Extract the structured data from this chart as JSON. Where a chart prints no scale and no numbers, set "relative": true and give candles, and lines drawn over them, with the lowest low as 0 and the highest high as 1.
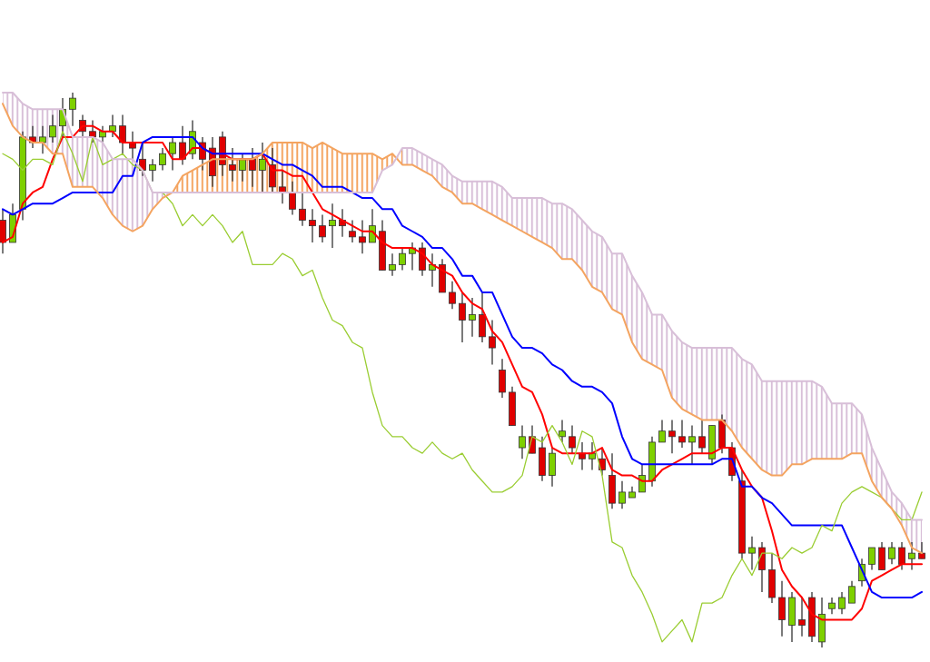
{
  "chart_data": {
    "type": "candlestick",
    "relative": true,
    "categories": [
      null,
      null,
      null,
      null,
      null,
      null,
      null,
      null,
      null,
      null,
      null,
      null,
      null,
      null,
      null,
      null,
      null,
      null,
      null,
      null,
      null,
      null,
      null,
      null,
      null,
      null,
      null,
      null,
      null,
      null,
      null,
      null,
      null,
      null,
      null,
      null,
      null,
      null,
      null,
      null,
      null,
      null,
      null,
      null,
      null,
      null,
      null,
      null,
      null,
      null,
      null,
      null,
      null,
      null,
      null,
      null,
      null,
      null,
      null,
      null,
      null,
      null,
      null,
      null,
      null,
      null,
      null,
      null,
      null,
      null,
      null,
      null,
      null,
      null,
      null,
      null,
      null,
      null,
      null,
      null,
      null,
      null,
      null,
      null,
      null,
      null,
      null,
      null,
      null,
      null,
      null,
      null,
      null
    ],
    "colors": [
      "#e00000",
      "#7ed000",
      "#7ed000",
      "#e00000",
      "#7ed000",
      "#7ed000",
      "#7ed000",
      "#7ed000",
      "#e00000",
      "#e00000",
      "#7ed000",
      "#7ed000",
      "#e00000",
      "#e00000",
      "#e00000",
      "#7ed000",
      "#7ed000",
      "#7ed000",
      "#e00000",
      "#7ed000",
      "#e00000",
      "#e00000",
      "#e00000",
      "#e00000",
      "#7ed000",
      "#e00000",
      "#7ed000",
      "#e00000",
      "#e00000",
      "#e00000",
      "#e00000",
      "#e00000",
      "#e00000",
      "#7ed000",
      "#e00000",
      "#e00000",
      "#e00000",
      "#7ed000",
      "#e00000",
      "#7ed000",
      "#7ed000",
      "#7ed000",
      "#e00000",
      "#7ed000",
      "#e00000",
      "#e00000",
      "#e00000",
      "#7ed000",
      "#e00000",
      "#e00000",
      "#e00000",
      "#e00000",
      "#7ed000",
      "#e00000",
      "#e00000",
      "#7ed000",
      "#7ed000",
      "#e00000",
      "#e00000",
      "#7ed000",
      "#e00000",
      "#e00000",
      "#7ed000",
      "#7ed000",
      "#7ed000",
      "#7ed000",
      "#7ed000",
      "#e00000",
      "#e00000",
      "#7ed000",
      "#e00000",
      "#7ed000",
      "#e00000",
      "#e00000",
      "#e00000",
      "#7ed000",
      "#e00000",
      "#e00000",
      "#e00000",
      "#7ed000",
      "#e00000",
      "#e00000",
      "#7ed000",
      "#7ed000",
      "#7ed000",
      "#7ed000",
      "#7ed000",
      "#7ed000",
      "#e00000",
      "#7ed000",
      "#e00000",
      "#7ed000",
      "#e00000"
    ],
    "ohlc": [
      [
        0.77,
        0.79,
        0.71,
        0.73
      ],
      [
        0.73,
        0.8,
        0.73,
        0.78
      ],
      [
        0.79,
        0.93,
        0.77,
        0.92
      ],
      [
        0.92,
        0.94,
        0.9,
        0.91
      ],
      [
        0.91,
        0.94,
        0.89,
        0.92
      ],
      [
        0.92,
        0.96,
        0.91,
        0.94
      ],
      [
        0.94,
        0.99,
        0.92,
        0.97
      ],
      [
        0.97,
        1.0,
        0.94,
        0.99
      ],
      [
        0.95,
        0.96,
        0.92,
        0.93
      ],
      [
        0.93,
        0.95,
        0.91,
        0.92
      ],
      [
        0.92,
        0.94,
        0.91,
        0.93
      ],
      [
        0.93,
        0.96,
        0.92,
        0.94
      ],
      [
        0.94,
        0.96,
        0.89,
        0.91
      ],
      [
        0.91,
        0.93,
        0.88,
        0.9
      ],
      [
        0.88,
        0.91,
        0.85,
        0.86
      ],
      [
        0.86,
        0.88,
        0.84,
        0.87
      ],
      [
        0.87,
        0.9,
        0.86,
        0.89
      ],
      [
        0.89,
        0.92,
        0.86,
        0.91
      ],
      [
        0.91,
        0.94,
        0.87,
        0.88
      ],
      [
        0.89,
        0.95,
        0.88,
        0.93
      ],
      [
        0.91,
        0.92,
        0.86,
        0.88
      ],
      [
        0.9,
        0.92,
        0.83,
        0.85
      ],
      [
        0.92,
        0.93,
        0.85,
        0.87
      ],
      [
        0.87,
        0.9,
        0.84,
        0.86
      ],
      [
        0.86,
        0.89,
        0.84,
        0.88
      ],
      [
        0.88,
        0.9,
        0.83,
        0.86
      ],
      [
        0.86,
        0.91,
        0.82,
        0.88
      ],
      [
        0.87,
        0.9,
        0.82,
        0.83
      ],
      [
        0.83,
        0.86,
        0.8,
        0.82
      ],
      [
        0.82,
        0.84,
        0.78,
        0.79
      ],
      [
        0.79,
        0.82,
        0.76,
        0.77
      ],
      [
        0.77,
        0.79,
        0.73,
        0.76
      ],
      [
        0.76,
        0.78,
        0.73,
        0.74
      ],
      [
        0.76,
        0.8,
        0.72,
        0.77
      ],
      [
        0.77,
        0.79,
        0.74,
        0.76
      ],
      [
        0.75,
        0.77,
        0.73,
        0.74
      ],
      [
        0.74,
        0.77,
        0.71,
        0.73
      ],
      [
        0.73,
        0.79,
        0.73,
        0.76
      ],
      [
        0.75,
        0.77,
        0.68,
        0.68
      ],
      [
        0.68,
        0.71,
        0.67,
        0.69
      ],
      [
        0.69,
        0.72,
        0.68,
        0.71
      ],
      [
        0.71,
        0.73,
        0.68,
        0.72
      ],
      [
        0.72,
        0.73,
        0.67,
        0.68
      ],
      [
        0.68,
        0.71,
        0.65,
        0.69
      ],
      [
        0.69,
        0.7,
        0.64,
        0.64
      ],
      [
        0.64,
        0.66,
        0.61,
        0.62
      ],
      [
        0.62,
        0.64,
        0.55,
        0.59
      ],
      [
        0.59,
        0.63,
        0.56,
        0.6
      ],
      [
        0.6,
        0.64,
        0.55,
        0.56
      ],
      [
        0.56,
        0.59,
        0.51,
        0.54
      ],
      [
        0.5,
        0.52,
        0.45,
        0.46
      ],
      [
        0.46,
        0.47,
        0.4,
        0.4
      ],
      [
        0.36,
        0.4,
        0.34,
        0.38
      ],
      [
        0.38,
        0.4,
        0.35,
        0.35
      ],
      [
        0.36,
        0.38,
        0.3,
        0.31
      ],
      [
        0.31,
        0.36,
        0.29,
        0.35
      ],
      [
        0.38,
        0.41,
        0.37,
        0.39
      ],
      [
        0.38,
        0.4,
        0.35,
        0.36
      ],
      [
        0.35,
        0.37,
        0.32,
        0.34
      ],
      [
        0.34,
        0.37,
        0.32,
        0.35
      ],
      [
        0.34,
        0.36,
        0.31,
        0.32
      ],
      [
        0.31,
        0.35,
        0.25,
        0.26
      ],
      [
        0.26,
        0.3,
        0.25,
        0.28
      ],
      [
        0.27,
        0.29,
        0.27,
        0.28
      ],
      [
        0.28,
        0.33,
        0.28,
        0.31
      ],
      [
        0.3,
        0.38,
        0.29,
        0.37
      ],
      [
        0.37,
        0.41,
        0.37,
        0.39
      ],
      [
        0.39,
        0.41,
        0.35,
        0.38
      ],
      [
        0.38,
        0.41,
        0.36,
        0.37
      ],
      [
        0.37,
        0.4,
        0.33,
        0.38
      ],
      [
        0.38,
        0.41,
        0.35,
        0.36
      ],
      [
        0.34,
        0.4,
        0.33,
        0.4
      ],
      [
        0.41,
        0.42,
        0.35,
        0.36
      ],
      [
        0.36,
        0.37,
        0.3,
        0.31
      ],
      [
        0.3,
        0.32,
        0.16,
        0.17
      ],
      [
        0.17,
        0.2,
        0.14,
        0.18
      ],
      [
        0.18,
        0.19,
        0.1,
        0.14
      ],
      [
        0.14,
        0.17,
        0.08,
        0.09
      ],
      [
        0.09,
        0.12,
        0.02,
        0.05
      ],
      [
        0.04,
        0.1,
        0.01,
        0.09
      ],
      [
        0.05,
        0.09,
        0.02,
        0.04
      ],
      [
        0.09,
        0.1,
        0.01,
        0.02
      ],
      [
        0.01,
        0.09,
        0.0,
        0.06
      ],
      [
        0.07,
        0.09,
        0.06,
        0.08
      ],
      [
        0.07,
        0.1,
        0.06,
        0.09
      ],
      [
        0.08,
        0.12,
        0.08,
        0.11
      ],
      [
        0.12,
        0.16,
        0.11,
        0.15
      ],
      [
        0.15,
        0.18,
        0.14,
        0.18
      ],
      [
        0.18,
        0.19,
        0.14,
        0.14
      ],
      [
        0.16,
        0.19,
        0.15,
        0.18
      ],
      [
        0.18,
        0.19,
        0.14,
        0.15
      ],
      [
        0.16,
        0.19,
        0.14,
        0.17
      ],
      [
        0.17,
        0.19,
        0.16,
        0.16
      ]
    ],
    "series": [
      {
        "type": "line",
        "color": "#ff0000",
        "values": [
          0.73,
          0.74,
          0.8,
          0.82,
          0.83,
          0.88,
          0.92,
          0.92,
          0.94,
          0.94,
          0.93,
          0.93,
          0.91,
          0.91,
          0.91,
          0.91,
          0.91,
          0.88,
          0.88,
          0.9,
          0.9,
          0.89,
          0.89,
          0.88,
          0.88,
          0.88,
          0.89,
          0.86,
          0.86,
          0.85,
          0.85,
          0.82,
          0.79,
          0.78,
          0.77,
          0.76,
          0.75,
          0.75,
          0.73,
          0.72,
          0.72,
          0.72,
          0.71,
          0.69,
          0.68,
          0.67,
          0.64,
          0.62,
          0.61,
          0.57,
          0.55,
          0.51,
          0.47,
          0.46,
          0.42,
          0.36,
          0.35,
          0.35,
          0.35,
          0.35,
          0.36,
          0.32,
          0.31,
          0.31,
          0.3,
          0.3,
          0.32,
          0.33,
          0.34,
          0.35,
          0.35,
          0.35,
          0.36,
          0.36,
          0.32,
          0.29,
          0.27,
          0.21,
          0.14,
          0.11,
          0.09,
          0.06,
          0.05,
          0.05,
          0.05,
          0.05,
          0.07,
          0.12,
          0.13,
          0.14,
          0.15,
          0.15,
          0.15
        ]
      },
      {
        "type": "line",
        "color": "#0000ff",
        "values": [
          0.79,
          0.78,
          0.79,
          0.8,
          0.8,
          0.8,
          0.81,
          0.82,
          0.82,
          0.82,
          0.82,
          0.82,
          0.85,
          0.85,
          0.91,
          0.92,
          0.92,
          0.92,
          0.92,
          0.92,
          0.9,
          0.89,
          0.89,
          0.89,
          0.89,
          0.89,
          0.89,
          0.88,
          0.87,
          0.87,
          0.86,
          0.85,
          0.83,
          0.83,
          0.83,
          0.82,
          0.81,
          0.81,
          0.79,
          0.79,
          0.76,
          0.75,
          0.74,
          0.72,
          0.72,
          0.7,
          0.67,
          0.67,
          0.64,
          0.64,
          0.6,
          0.56,
          0.54,
          0.54,
          0.53,
          0.51,
          0.5,
          0.48,
          0.47,
          0.47,
          0.46,
          0.44,
          0.38,
          0.34,
          0.33,
          0.33,
          0.33,
          0.33,
          0.33,
          0.33,
          0.33,
          0.33,
          0.34,
          0.34,
          0.29,
          0.29,
          0.27,
          0.26,
          0.24,
          0.22,
          0.22,
          0.22,
          0.22,
          0.22,
          0.22,
          0.18,
          0.14,
          0.1,
          0.09,
          0.09,
          0.09,
          0.09,
          0.1
        ]
      },
      {
        "type": "line",
        "color": "#9acd32",
        "values": [
          0.89,
          0.88,
          0.86,
          0.88,
          0.88,
          0.87,
          0.93,
          0.89,
          0.84,
          0.92,
          0.87,
          0.88,
          0.89,
          0.87,
          0.86,
          0.82,
          0.82,
          0.8,
          0.76,
          0.78,
          0.76,
          0.78,
          0.76,
          0.73,
          0.75,
          0.69,
          0.69,
          0.69,
          0.71,
          0.7,
          0.67,
          0.68,
          0.63,
          0.59,
          0.58,
          0.55,
          0.54,
          0.46,
          0.4,
          0.38,
          0.38,
          0.36,
          0.35,
          0.37,
          0.35,
          0.34,
          0.35,
          0.32,
          0.3,
          0.28,
          0.28,
          0.29,
          0.31,
          0.38,
          0.37,
          0.4,
          0.37,
          0.33,
          0.39,
          0.38,
          0.31,
          0.19,
          0.18,
          0.13,
          0.1,
          0.06,
          0.01,
          0.03,
          0.05,
          0.01,
          0.08,
          0.08,
          0.09,
          0.13,
          0.16,
          0.13,
          0.17,
          0.17,
          0.16,
          0.18,
          0.17,
          0.18,
          0.22,
          0.21,
          0.26,
          0.28,
          0.29,
          0.28,
          0.27,
          0.25,
          0.23,
          0.23,
          0.28
        ]
      },
      {
        "type": "line",
        "color": "#f4a460",
        "values": [
          0.98,
          0.94,
          0.92,
          0.91,
          0.91,
          0.89,
          0.89,
          0.83,
          0.83,
          0.83,
          0.81,
          0.78,
          0.76,
          0.75,
          0.76,
          0.79,
          0.81,
          0.82,
          0.85,
          0.86,
          0.87,
          0.88,
          0.88,
          0.88,
          0.88,
          0.88,
          0.89,
          0.91,
          0.91,
          0.91,
          0.91,
          0.9,
          0.91,
          0.9,
          0.89,
          0.89,
          0.89,
          0.89,
          0.88,
          0.89,
          0.87,
          0.87,
          0.86,
          0.85,
          0.83,
          0.82,
          0.8,
          0.8,
          0.79,
          0.78,
          0.77,
          0.76,
          0.75,
          0.74,
          0.73,
          0.72,
          0.7,
          0.7,
          0.68,
          0.65,
          0.64,
          0.61,
          0.6,
          0.55,
          0.52,
          0.51,
          0.5,
          0.45,
          0.43,
          0.42,
          0.41,
          0.41,
          0.41,
          0.39,
          0.36,
          0.34,
          0.32,
          0.31,
          0.31,
          0.33,
          0.33,
          0.34,
          0.34,
          0.34,
          0.34,
          0.35,
          0.35,
          0.3,
          0.27,
          0.25,
          0.22,
          0.18,
          0.17
        ],
        "upper": [
          null,
          null,
          null,
          null,
          null,
          null,
          null,
          null,
          null,
          null,
          null,
          null,
          null,
          null,
          null,
          null,
          null,
          0.82,
          0.85,
          0.86,
          0.87,
          0.88,
          0.88,
          0.88,
          0.88,
          0.88,
          0.89,
          0.91,
          0.91,
          0.91,
          0.91,
          0.9,
          0.91,
          0.9,
          0.89,
          0.89,
          0.89,
          0.89,
          0.88,
          0.89,
          0.87,
          null,
          null,
          null,
          null,
          null,
          null,
          null,
          null,
          null,
          null,
          null,
          null,
          null,
          null,
          null,
          null,
          null,
          null,
          null,
          null,
          null,
          null,
          null,
          null,
          null,
          null,
          null,
          null,
          null,
          null,
          null,
          null,
          null,
          null,
          null,
          null,
          null,
          null,
          null,
          null,
          null,
          null,
          null,
          null,
          null,
          null,
          null,
          null,
          null,
          null,
          null,
          null
        ],
        "lower": [
          null,
          null,
          null,
          null,
          null,
          null,
          null,
          null,
          null,
          null,
          null,
          null,
          null,
          null,
          null,
          null,
          null,
          0.82,
          0.82,
          0.82,
          0.82,
          0.82,
          0.82,
          0.82,
          0.82,
          0.82,
          0.82,
          0.82,
          0.82,
          0.82,
          0.82,
          0.82,
          0.82,
          0.82,
          0.82,
          0.82,
          0.82,
          0.82,
          0.86,
          0.87,
          0.9,
          null,
          null,
          null,
          null,
          null,
          null,
          null,
          null,
          null,
          null,
          null,
          null,
          null,
          null,
          null,
          null,
          null,
          null,
          null,
          null,
          null,
          null,
          null,
          null,
          null,
          null,
          null,
          null,
          null,
          null,
          null,
          null,
          null,
          null,
          null,
          null,
          null,
          null,
          null,
          null,
          null,
          null,
          null,
          null,
          null,
          null,
          null,
          null,
          null,
          null,
          null,
          null
        ]
      },
      {
        "type": "line",
        "color": "#d8bfd8",
        "values": [
          1.0,
          1.0,
          0.98,
          0.97,
          0.97,
          0.97,
          0.97,
          0.92,
          0.92,
          0.92,
          0.91,
          0.88,
          0.88,
          0.88,
          0.86,
          0.82,
          0.82,
          0.82,
          0.82,
          0.82,
          0.82,
          0.82,
          0.82,
          0.82,
          0.82,
          0.82,
          0.82,
          0.82,
          0.82,
          0.82,
          0.82,
          0.82,
          0.82,
          0.82,
          0.82,
          0.82,
          0.82,
          0.82,
          0.86,
          0.87,
          0.9,
          0.9,
          0.89,
          0.88,
          0.87,
          0.85,
          0.84,
          0.84,
          0.84,
          0.84,
          0.83,
          0.81,
          0.81,
          0.81,
          0.81,
          0.8,
          0.8,
          0.79,
          0.77,
          0.75,
          0.74,
          0.71,
          0.71,
          0.67,
          0.64,
          0.6,
          0.6,
          0.57,
          0.55,
          0.54,
          0.54,
          0.54,
          0.54,
          0.54,
          0.52,
          0.51,
          0.48,
          0.48,
          0.48,
          0.48,
          0.48,
          0.48,
          0.47,
          0.44,
          0.44,
          0.44,
          0.42,
          0.36,
          0.32,
          0.28,
          0.26,
          0.23,
          0.23
        ],
        "upper": [
          1.0,
          1.0,
          0.98,
          0.97,
          0.97,
          0.97,
          0.97,
          0.92,
          0.92,
          0.92,
          0.91,
          0.88,
          0.88,
          0.88,
          0.86,
          0.82,
          0.82,
          0.82,
          null,
          null,
          null,
          null,
          null,
          null,
          null,
          null,
          null,
          null,
          null,
          null,
          null,
          null,
          null,
          null,
          null,
          null,
          null,
          null,
          null,
          null,
          0.9,
          0.9,
          0.89,
          0.88,
          0.87,
          0.85,
          0.84,
          0.84,
          0.84,
          0.84,
          0.83,
          0.81,
          0.81,
          0.81,
          0.81,
          0.8,
          0.8,
          0.79,
          0.77,
          0.75,
          0.74,
          0.71,
          0.71,
          0.67,
          0.64,
          0.6,
          0.6,
          0.57,
          0.55,
          0.54,
          0.54,
          0.54,
          0.54,
          0.54,
          0.52,
          0.51,
          0.48,
          0.48,
          0.48,
          0.48,
          0.48,
          0.48,
          0.47,
          0.44,
          0.44,
          0.44,
          0.42,
          0.36,
          0.32,
          0.28,
          0.26,
          0.23,
          0.23
        ],
        "lower": [
          0.98,
          0.94,
          0.92,
          0.91,
          0.91,
          0.89,
          0.89,
          0.83,
          0.83,
          0.83,
          0.81,
          0.78,
          0.76,
          0.75,
          0.76,
          0.79,
          0.81,
          0.82,
          null,
          null,
          null,
          null,
          null,
          null,
          null,
          null,
          null,
          null,
          null,
          null,
          null,
          null,
          null,
          null,
          null,
          null,
          null,
          null,
          null,
          null,
          0.87,
          0.87,
          0.86,
          0.85,
          0.83,
          0.82,
          0.8,
          0.8,
          0.79,
          0.78,
          0.77,
          0.76,
          0.75,
          0.74,
          0.73,
          0.72,
          0.7,
          0.7,
          0.68,
          0.65,
          0.64,
          0.61,
          0.6,
          0.55,
          0.52,
          0.51,
          0.5,
          0.45,
          0.43,
          0.42,
          0.41,
          0.41,
          0.41,
          0.39,
          0.36,
          0.34,
          0.32,
          0.31,
          0.31,
          0.33,
          0.33,
          0.34,
          0.34,
          0.34,
          0.34,
          0.35,
          0.35,
          0.3,
          0.27,
          0.25,
          0.22,
          0.18,
          0.17
        ]
      }
    ]
  }
}
